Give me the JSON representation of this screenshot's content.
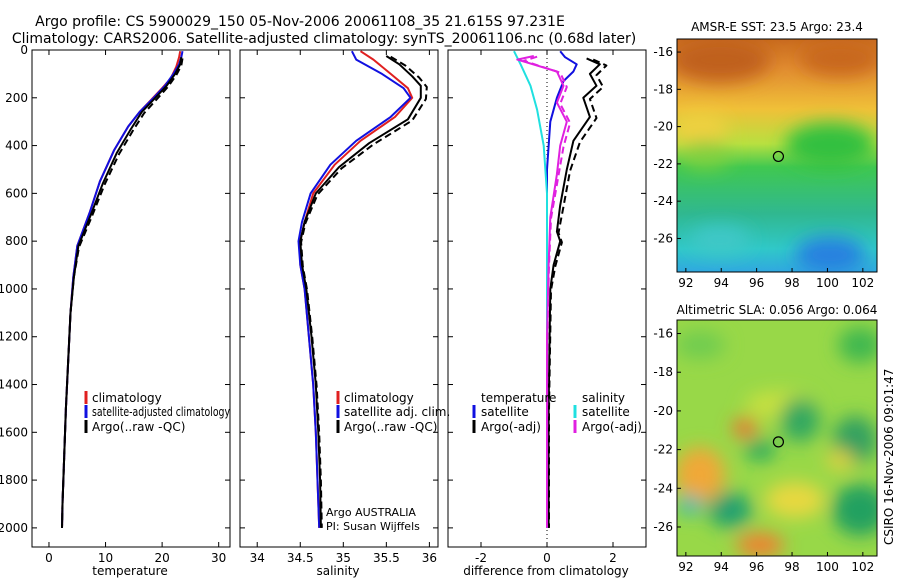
{
  "header": {
    "line1": "Argo profile: CS 5900029_150 05-Nov-2006 20061108_35 21.615S 97.231E",
    "line2": "Climatology: CARS2006. Satellite-adjusted climatology: synTS_20061106.nc (0.68d later)"
  },
  "side_note": "CSIRO 16-Nov-2006 09:01:47",
  "colors": {
    "red": "#e02020",
    "blue": "#1010e0",
    "black": "#000000",
    "cyan": "#20e0e0",
    "magenta": "#e020e0"
  },
  "chart_data": [
    {
      "type": "line",
      "xlabel": "temperature",
      "ylabel": "",
      "xlim": [
        -3,
        32
      ],
      "ylim": [
        2080,
        0
      ],
      "xticks": [
        "0",
        "10",
        "20",
        "30"
      ],
      "yticks": [
        "0",
        "200",
        "400",
        "600",
        "800",
        "1000",
        "1200",
        "1400",
        "1600",
        "1800",
        "2000"
      ],
      "legend": [
        "climatology",
        "satellite-adjusted climatology",
        "Argo(..raw -QC)"
      ],
      "series": [
        {
          "name": "climatology",
          "color": "red",
          "values": [
            [
              23.2,
              5
            ],
            [
              23.0,
              30
            ],
            [
              22.5,
              70
            ],
            [
              21.5,
              120
            ],
            [
              20.0,
              160
            ],
            [
              18.0,
              210
            ],
            [
              16.0,
              260
            ],
            [
              14.0,
              320
            ],
            [
              11.5,
              420
            ],
            [
              9.0,
              550
            ],
            [
              7.2,
              680
            ],
            [
              5.0,
              820
            ],
            [
              4.3,
              950
            ],
            [
              3.8,
              1100
            ],
            [
              3.4,
              1300
            ],
            [
              3.0,
              1500
            ],
            [
              2.7,
              1700
            ],
            [
              2.4,
              1900
            ],
            [
              2.3,
              2000
            ]
          ]
        },
        {
          "name": "satellite-adjusted climatology",
          "color": "blue",
          "values": [
            [
              23.6,
              5
            ],
            [
              23.4,
              30
            ],
            [
              23.0,
              60
            ],
            [
              22.0,
              100
            ],
            [
              20.5,
              150
            ],
            [
              18.3,
              205
            ],
            [
              16.0,
              260
            ],
            [
              14.0,
              320
            ],
            [
              11.5,
              420
            ],
            [
              9.0,
              550
            ],
            [
              7.2,
              680
            ],
            [
              5.0,
              820
            ],
            [
              4.3,
              950
            ],
            [
              3.8,
              1100
            ],
            [
              3.4,
              1300
            ],
            [
              3.0,
              1500
            ],
            [
              2.7,
              1700
            ],
            [
              2.4,
              1900
            ],
            [
              2.3,
              2000
            ]
          ]
        },
        {
          "name": "Argo(..raw -QC)",
          "color": "black",
          "values": [
            [
              23.4,
              30
            ],
            [
              23.2,
              60
            ],
            [
              22.3,
              100
            ],
            [
              20.8,
              150
            ],
            [
              18.6,
              205
            ],
            [
              16.4,
              260
            ],
            [
              14.5,
              330
            ],
            [
              12.0,
              430
            ],
            [
              9.5,
              560
            ],
            [
              7.4,
              690
            ],
            [
              5.2,
              820
            ],
            [
              4.4,
              950
            ],
            [
              3.8,
              1100
            ],
            [
              3.4,
              1300
            ],
            [
              3.0,
              1500
            ],
            [
              2.7,
              1700
            ],
            [
              2.4,
              1900
            ],
            [
              2.3,
              2000
            ]
          ]
        },
        {
          "name": "Argo(..raw -QC)",
          "color": "black",
          "dashed": true,
          "values": [
            [
              23.6,
              35
            ],
            [
              23.4,
              65
            ],
            [
              22.5,
              105
            ],
            [
              21.0,
              155
            ],
            [
              18.9,
              210
            ],
            [
              16.8,
              265
            ],
            [
              14.9,
              335
            ],
            [
              12.4,
              435
            ],
            [
              9.8,
              565
            ],
            [
              7.6,
              695
            ],
            [
              5.3,
              825
            ],
            [
              4.4,
              950
            ],
            [
              3.8,
              1100
            ],
            [
              3.4,
              1300
            ],
            [
              3.0,
              1500
            ],
            [
              2.7,
              1700
            ],
            [
              2.4,
              1900
            ],
            [
              2.3,
              2000
            ]
          ]
        }
      ]
    },
    {
      "type": "line",
      "xlabel": "salinity",
      "xlim": [
        33.8,
        36.1
      ],
      "ylim": [
        2080,
        0
      ],
      "xticks": [
        "34",
        "34.5",
        "35",
        "35.5",
        "36"
      ],
      "legend": [
        "climatology",
        "satellite adj. clim.",
        "Argo(..raw -QC)"
      ],
      "annotation": [
        "Argo AUSTRALIA",
        "PI: Susan Wijffels"
      ],
      "series": [
        {
          "name": "climatology",
          "color": "red",
          "values": [
            [
              35.2,
              5
            ],
            [
              35.35,
              40
            ],
            [
              35.55,
              100
            ],
            [
              35.75,
              160
            ],
            [
              35.8,
              200
            ],
            [
              35.6,
              280
            ],
            [
              35.2,
              380
            ],
            [
              34.9,
              480
            ],
            [
              34.65,
              600
            ],
            [
              34.55,
              720
            ],
            [
              34.5,
              800
            ],
            [
              34.5,
              900
            ],
            [
              34.55,
              1000
            ],
            [
              34.6,
              1200
            ],
            [
              34.65,
              1400
            ],
            [
              34.68,
              1600
            ],
            [
              34.7,
              1800
            ],
            [
              34.72,
              2000
            ]
          ]
        },
        {
          "name": "satellite adj. clim.",
          "color": "blue",
          "values": [
            [
              35.1,
              5
            ],
            [
              35.15,
              40
            ],
            [
              35.45,
              100
            ],
            [
              35.7,
              160
            ],
            [
              35.78,
              200
            ],
            [
              35.55,
              280
            ],
            [
              35.15,
              380
            ],
            [
              34.85,
              480
            ],
            [
              34.62,
              600
            ],
            [
              34.52,
              720
            ],
            [
              34.48,
              800
            ],
            [
              34.5,
              900
            ],
            [
              34.55,
              1000
            ],
            [
              34.6,
              1200
            ],
            [
              34.65,
              1400
            ],
            [
              34.68,
              1600
            ],
            [
              34.7,
              1800
            ],
            [
              34.72,
              2000
            ]
          ]
        },
        {
          "name": "Argo(..raw -QC)",
          "color": "black",
          "values": [
            [
              35.5,
              25
            ],
            [
              35.65,
              60
            ],
            [
              35.8,
              110
            ],
            [
              35.9,
              150
            ],
            [
              35.9,
              200
            ],
            [
              35.75,
              290
            ],
            [
              35.3,
              390
            ],
            [
              34.95,
              490
            ],
            [
              34.68,
              600
            ],
            [
              34.55,
              720
            ],
            [
              34.5,
              800
            ],
            [
              34.52,
              900
            ],
            [
              34.57,
              1000
            ],
            [
              34.63,
              1200
            ],
            [
              34.68,
              1400
            ],
            [
              34.71,
              1600
            ],
            [
              34.73,
              1800
            ],
            [
              34.74,
              2000
            ]
          ]
        },
        {
          "name": "Argo(..raw -QC)",
          "color": "black",
          "dashed": true,
          "values": [
            [
              35.55,
              28
            ],
            [
              35.72,
              65
            ],
            [
              35.88,
              115
            ],
            [
              35.97,
              155
            ],
            [
              35.96,
              205
            ],
            [
              35.8,
              295
            ],
            [
              35.35,
              395
            ],
            [
              34.98,
              495
            ],
            [
              34.7,
              605
            ],
            [
              34.56,
              725
            ],
            [
              34.51,
              805
            ],
            [
              34.53,
              905
            ],
            [
              34.58,
              1005
            ],
            [
              34.64,
              1205
            ],
            [
              34.69,
              1405
            ],
            [
              34.72,
              1605
            ],
            [
              34.74,
              1805
            ],
            [
              34.75,
              2000
            ]
          ]
        }
      ]
    },
    {
      "type": "line",
      "xlabel": "difference from climatology",
      "xlim": [
        -3,
        3
      ],
      "ylim": [
        2080,
        0
      ],
      "xticks": [
        "-2",
        "0",
        "2"
      ],
      "legend": [
        "temperature",
        "satellite",
        "Argo(-adj)",
        "salinity",
        "satellite",
        "Argo(-adj)"
      ],
      "series": [
        {
          "name": "satellite",
          "group": "temperature",
          "color": "blue",
          "values": [
            [
              0.4,
              5
            ],
            [
              0.55,
              30
            ],
            [
              0.9,
              60
            ],
            [
              0.8,
              90
            ],
            [
              0.5,
              130
            ],
            [
              0.3,
              200
            ],
            [
              0.1,
              300
            ],
            [
              0.0,
              500
            ],
            [
              0.0,
              1000
            ],
            [
              0.0,
              2000
            ]
          ]
        },
        {
          "name": "Argo(-adj)",
          "group": "temperature",
          "color": "black",
          "values": [
            [
              1.2,
              35
            ],
            [
              1.6,
              60
            ],
            [
              1.3,
              100
            ],
            [
              1.5,
              150
            ],
            [
              1.1,
              200
            ],
            [
              1.3,
              280
            ],
            [
              0.8,
              380
            ],
            [
              0.6,
              500
            ],
            [
              0.4,
              650
            ],
            [
              0.3,
              760
            ],
            [
              0.4,
              800
            ],
            [
              0.2,
              900
            ],
            [
              0.1,
              1000
            ],
            [
              0.05,
              1500
            ],
            [
              0.05,
              2000
            ]
          ]
        },
        {
          "name": "Argo(-adj)",
          "group": "temperature",
          "color": "black",
          "dashed": true,
          "values": [
            [
              1.4,
              40
            ],
            [
              1.8,
              65
            ],
            [
              1.5,
              105
            ],
            [
              1.7,
              155
            ],
            [
              1.3,
              205
            ],
            [
              1.5,
              285
            ],
            [
              1.0,
              385
            ],
            [
              0.7,
              505
            ],
            [
              0.5,
              655
            ],
            [
              0.35,
              765
            ],
            [
              0.45,
              805
            ],
            [
              0.25,
              905
            ],
            [
              0.12,
              1005
            ],
            [
              0.06,
              1505
            ],
            [
              0.06,
              2000
            ]
          ]
        },
        {
          "name": "satellite",
          "group": "salinity",
          "color": "cyan",
          "values": [
            [
              -1.0,
              5
            ],
            [
              -0.8,
              60
            ],
            [
              -0.5,
              150
            ],
            [
              -0.3,
              250
            ],
            [
              -0.1,
              400
            ],
            [
              0.0,
              600
            ],
            [
              0.0,
              1000
            ],
            [
              0.0,
              2000
            ]
          ]
        },
        {
          "name": "Argo(-adj)",
          "group": "salinity",
          "color": "magenta",
          "values": [
            [
              -0.4,
              25
            ],
            [
              -0.9,
              40
            ],
            [
              0.3,
              90
            ],
            [
              0.5,
              150
            ],
            [
              0.3,
              220
            ],
            [
              0.6,
              300
            ],
            [
              0.4,
              400
            ],
            [
              0.3,
              520
            ],
            [
              0.1,
              700
            ],
            [
              0.05,
              900
            ],
            [
              0.0,
              1200
            ],
            [
              0.0,
              2000
            ]
          ]
        },
        {
          "name": "Argo(-adj)",
          "group": "salinity",
          "color": "magenta",
          "dashed": true,
          "values": [
            [
              -0.3,
              28
            ],
            [
              -0.7,
              45
            ],
            [
              0.4,
              95
            ],
            [
              0.6,
              155
            ],
            [
              0.4,
              225
            ],
            [
              0.7,
              305
            ],
            [
              0.5,
              405
            ],
            [
              0.35,
              525
            ],
            [
              0.12,
              705
            ],
            [
              0.06,
              905
            ],
            [
              0.01,
              1205
            ],
            [
              0.0,
              2000
            ]
          ]
        }
      ]
    },
    {
      "type": "heatmap",
      "title": "AMSR-E SST: 23.5 Argo: 23.4",
      "xlim": [
        91.5,
        102.8
      ],
      "ylim": [
        -27.8,
        -15.3
      ],
      "xticks": [
        "92",
        "94",
        "96",
        "98",
        "100",
        "102"
      ],
      "yticks": [
        "-16",
        "-18",
        "-20",
        "-22",
        "-24",
        "-26"
      ],
      "marker": {
        "lon": 97.23,
        "lat": -21.6
      }
    },
    {
      "type": "heatmap",
      "title": "Altimetric SLA: 0.056 Argo: 0.064",
      "xlim": [
        91.5,
        102.8
      ],
      "ylim": [
        -27.5,
        -15.3
      ],
      "xticks": [
        "92",
        "94",
        "96",
        "98",
        "100",
        "102"
      ],
      "yticks": [
        "-16",
        "-18",
        "-20",
        "-22",
        "-24",
        "-26"
      ],
      "marker": {
        "lon": 97.23,
        "lat": -21.6
      }
    }
  ]
}
